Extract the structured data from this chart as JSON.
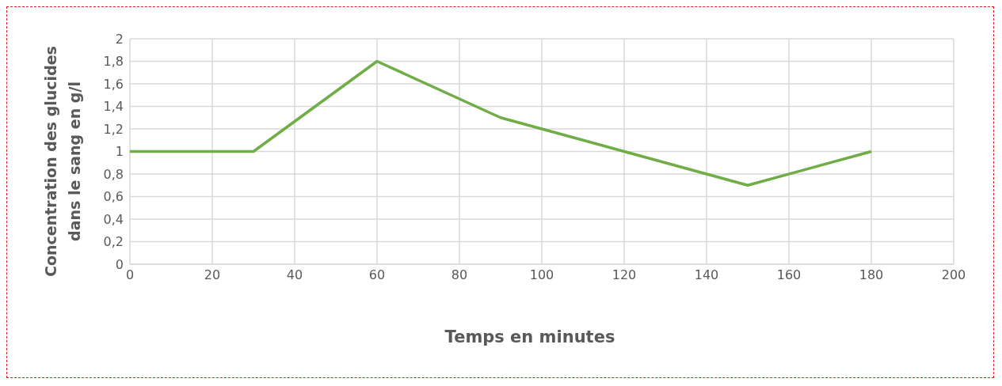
{
  "chart_data": {
    "type": "line",
    "xlabel": "Temps en minutes",
    "ylabel": "Concentration des glucides dans le sang en g/l",
    "x": [
      0,
      30,
      60,
      90,
      120,
      150,
      180
    ],
    "series": [
      {
        "color": "#70ad47",
        "values": [
          1,
          1,
          1.8,
          1.3,
          1.0,
          0.7,
          1.0
        ]
      }
    ],
    "xlim": [
      0,
      200
    ],
    "xticks": [
      0,
      20,
      40,
      60,
      80,
      100,
      120,
      140,
      160,
      180,
      200
    ],
    "ylim": [
      0,
      2
    ],
    "yticks": [
      0,
      {
        "value": 0.2,
        "label": "0,2"
      },
      {
        "value": 0.4,
        "label": "0,4"
      },
      {
        "value": 0.6,
        "label": "0,6"
      },
      {
        "value": 0.8,
        "label": "0,8"
      },
      1,
      {
        "value": 1.2,
        "label": "1,2"
      },
      {
        "value": 1.4,
        "label": "1,4"
      },
      {
        "value": 1.6,
        "label": "1,6"
      },
      {
        "value": 1.8,
        "label": "1,8"
      },
      2
    ],
    "grid": true,
    "marker": "none",
    "line_style": "solid",
    "legend": false
  }
}
